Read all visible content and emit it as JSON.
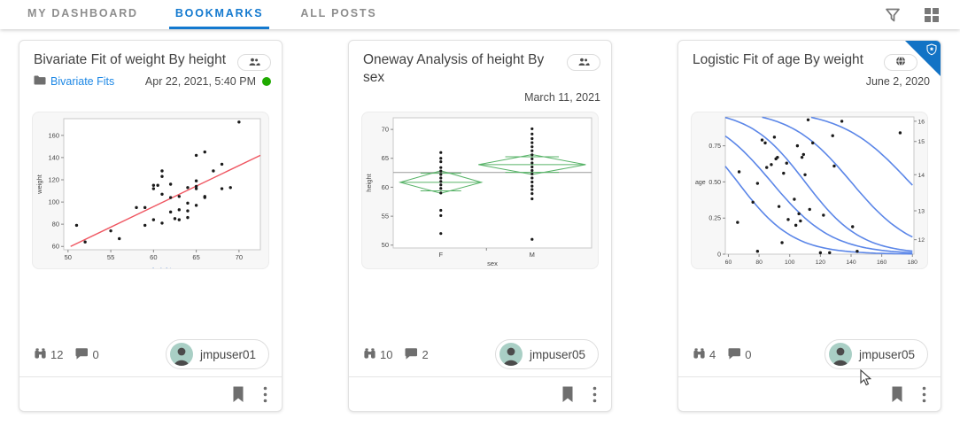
{
  "header": {
    "tabs": [
      {
        "label": "MY DASHBOARD",
        "active": false
      },
      {
        "label": "BOOKMARKS",
        "active": true
      },
      {
        "label": "ALL POSTS",
        "active": false
      }
    ],
    "icons": {
      "filter": "filter-funnel-icon",
      "layout": "grid-layout-icon"
    }
  },
  "colors": {
    "accent_blue": "#1379cf",
    "link_blue": "#1e88e5",
    "status_green": "#1faa00",
    "ribbon_blue": "#1273c5",
    "icon_gray": "#6e6e6e",
    "fit_red": "#ef5661",
    "diamond_green": "#58b368",
    "curve_blue": "#5b86e8",
    "avatar_bg": "#a9cfc5"
  },
  "cards": [
    {
      "title": "Bivariate Fit of weight By height",
      "access_icon": "group",
      "folder": "Bivariate Fits",
      "date": "Apr 22, 2021, 5:40 PM",
      "status_dot": true,
      "views": "12",
      "comments": "0",
      "user": "jmpuser01",
      "featured": false
    },
    {
      "title": "Oneway Analysis of height By sex",
      "access_icon": "group",
      "folder": null,
      "date": "March 11, 2021",
      "status_dot": false,
      "views": "10",
      "comments": "2",
      "user": "jmpuser05",
      "featured": false
    },
    {
      "title": "Logistic Fit of age By weight",
      "access_icon": "globe",
      "folder": null,
      "date": "June 2, 2020",
      "status_dot": false,
      "views": "4",
      "comments": "0",
      "user": "jmpuser05",
      "featured": true
    }
  ],
  "chart_data": [
    {
      "type": "scatter",
      "title": "Bivariate Fit of weight By height",
      "xlabel": "height",
      "ylabel": "weight",
      "xlim": [
        49.5,
        72.5
      ],
      "ylim": [
        57,
        175
      ],
      "xticks": [
        50,
        55,
        60,
        65,
        70
      ],
      "yticks": [
        60,
        80,
        100,
        120,
        140,
        160
      ],
      "fit_line": {
        "x1": 50.3,
        "y1": 60,
        "x2": 72.5,
        "y2": 142
      },
      "points": [
        [
          51,
          79
        ],
        [
          52,
          64
        ],
        [
          55,
          74
        ],
        [
          56,
          67
        ],
        [
          58,
          95
        ],
        [
          59,
          95
        ],
        [
          59,
          79
        ],
        [
          60,
          84
        ],
        [
          60,
          112
        ],
        [
          60,
          115
        ],
        [
          60.5,
          115
        ],
        [
          61,
          128
        ],
        [
          61,
          123
        ],
        [
          61,
          107
        ],
        [
          61,
          81
        ],
        [
          62,
          104
        ],
        [
          62,
          91
        ],
        [
          62,
          116
        ],
        [
          62.5,
          85
        ],
        [
          63,
          105
        ],
        [
          63,
          93
        ],
        [
          63,
          84
        ],
        [
          64,
          113
        ],
        [
          64,
          99
        ],
        [
          64,
          92
        ],
        [
          64,
          86
        ],
        [
          65,
          112
        ],
        [
          65,
          114
        ],
        [
          65,
          142
        ],
        [
          65,
          119
        ],
        [
          65,
          97
        ],
        [
          66,
          105
        ],
        [
          66,
          104
        ],
        [
          66,
          145
        ],
        [
          67,
          128
        ],
        [
          68,
          134
        ],
        [
          68,
          112
        ],
        [
          69,
          113
        ],
        [
          70,
          172
        ]
      ]
    },
    {
      "type": "oneway",
      "title": "Oneway Analysis of height By sex",
      "xlabel": "sex",
      "ylabel": "height",
      "ylim": [
        49.5,
        72
      ],
      "yticks": [
        50,
        55,
        60,
        65,
        70
      ],
      "categories": [
        "F",
        "M"
      ],
      "cat_pos": [
        0.24,
        0.7
      ],
      "grand_mean": 62.55,
      "diamonds": [
        {
          "mean": 60.85,
          "upper": 62.85,
          "lower": 58.95,
          "halfwidth": 0.205
        },
        {
          "mean": 63.9,
          "upper": 65.65,
          "lower": 62.2,
          "halfwidth": 0.27
        }
      ],
      "points_f": [
        66,
        65,
        64.4,
        63.4,
        62.8,
        62.2,
        61.6,
        61,
        60.4,
        59.8,
        59,
        56,
        55.1,
        52
      ],
      "points_m": [
        70.1,
        69.2,
        68.4,
        67.7,
        67,
        66.3,
        65.6,
        64.9,
        64.2,
        63.5,
        62.9,
        62.3,
        61.6,
        60.9,
        60.2,
        59.6,
        58.9,
        58,
        51
      ]
    },
    {
      "type": "logistic",
      "title": "Logistic Fit of age By weight",
      "xlabel": "weight",
      "ylabel": "age",
      "xlim": [
        58,
        181
      ],
      "ylim": [
        0,
        0.95
      ],
      "xticks": [
        60,
        80,
        100,
        120,
        140,
        160,
        180
      ],
      "yticks": [
        0,
        0.25,
        0.5,
        0.75
      ],
      "ytick_labels": [
        "0",
        "0.25",
        "0.50",
        "0.75"
      ],
      "right_axis": {
        "labels": [
          "12",
          "13",
          "14",
          "15",
          "16"
        ],
        "positions": [
          0.1,
          0.3,
          0.55,
          0.78,
          0.92
        ]
      },
      "curves": [
        {
          "x0": 66,
          "k": 0.055
        },
        {
          "x0": 88,
          "k": 0.05
        },
        {
          "x0": 110,
          "k": 0.055
        },
        {
          "x0": 140,
          "k": 0.05
        },
        {
          "x0": 178,
          "k": 0.045
        }
      ],
      "points": [
        [
          66,
          0.22
        ],
        [
          67,
          0.57
        ],
        [
          76,
          0.36
        ],
        [
          79,
          0.02
        ],
        [
          79,
          0.49
        ],
        [
          82,
          0.79
        ],
        [
          84,
          0.77
        ],
        [
          85,
          0.6
        ],
        [
          88,
          0.62
        ],
        [
          90,
          0.81
        ],
        [
          91,
          0.66
        ],
        [
          92,
          0.67
        ],
        [
          93,
          0.33
        ],
        [
          95,
          0.08
        ],
        [
          96,
          0.56
        ],
        [
          98,
          0.63
        ],
        [
          99,
          0.24
        ],
        [
          103,
          0.38
        ],
        [
          104,
          0.2
        ],
        [
          105,
          0.75
        ],
        [
          106,
          0.28
        ],
        [
          107,
          0.23
        ],
        [
          108,
          0.67
        ],
        [
          109,
          0.69
        ],
        [
          110,
          0.55
        ],
        [
          112,
          0.93
        ],
        [
          113,
          0.31
        ],
        [
          115,
          0.77
        ],
        [
          120,
          0.01
        ],
        [
          122,
          0.27
        ],
        [
          126,
          0.01
        ],
        [
          128,
          0.82
        ],
        [
          129,
          0.61
        ],
        [
          134,
          0.92
        ],
        [
          141,
          0.19
        ],
        [
          144,
          0.02
        ],
        [
          172,
          0.84
        ]
      ]
    }
  ]
}
